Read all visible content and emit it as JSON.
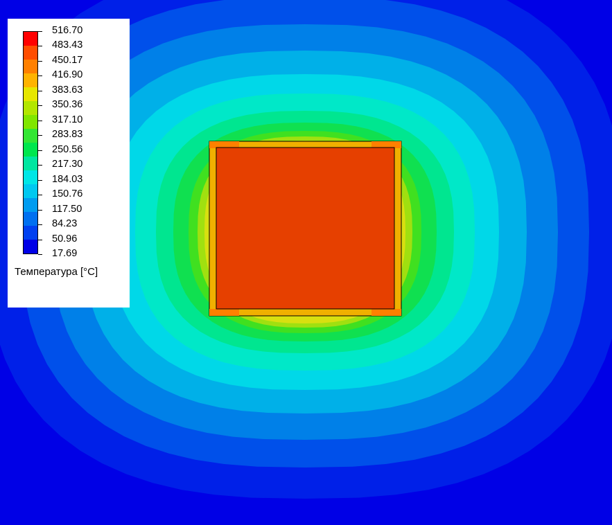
{
  "legend": {
    "title": "Температура [°C]",
    "ticks": [
      "516.70",
      "483.43",
      "450.17",
      "416.90",
      "383.63",
      "350.36",
      "317.10",
      "283.83",
      "250.56",
      "217.30",
      "184.03",
      "150.76",
      "117.50",
      "84.23",
      "50.96",
      "17.69"
    ],
    "colors": [
      "#ff0000",
      "#ff4d00",
      "#ff8000",
      "#ffb300",
      "#e6e600",
      "#b3e600",
      "#80e600",
      "#33e633",
      "#00e64d",
      "#00e6a0",
      "#00e6e6",
      "#00c8f0",
      "#009cf0",
      "#0070f0",
      "#0040f0",
      "#0000e6"
    ]
  },
  "field": {
    "background": "#0000e6",
    "contour_colors": [
      "#0020e8",
      "#0050ea",
      "#0080e8",
      "#00b0e8",
      "#00d8e8",
      "#00e8c8",
      "#00e690",
      "#10e050",
      "#40e020",
      "#a0e010",
      "#d8e010"
    ],
    "heater_fill": "#e64000",
    "frame_fill": "#f0b000",
    "frame_corner_fill": "#ff8000"
  }
}
